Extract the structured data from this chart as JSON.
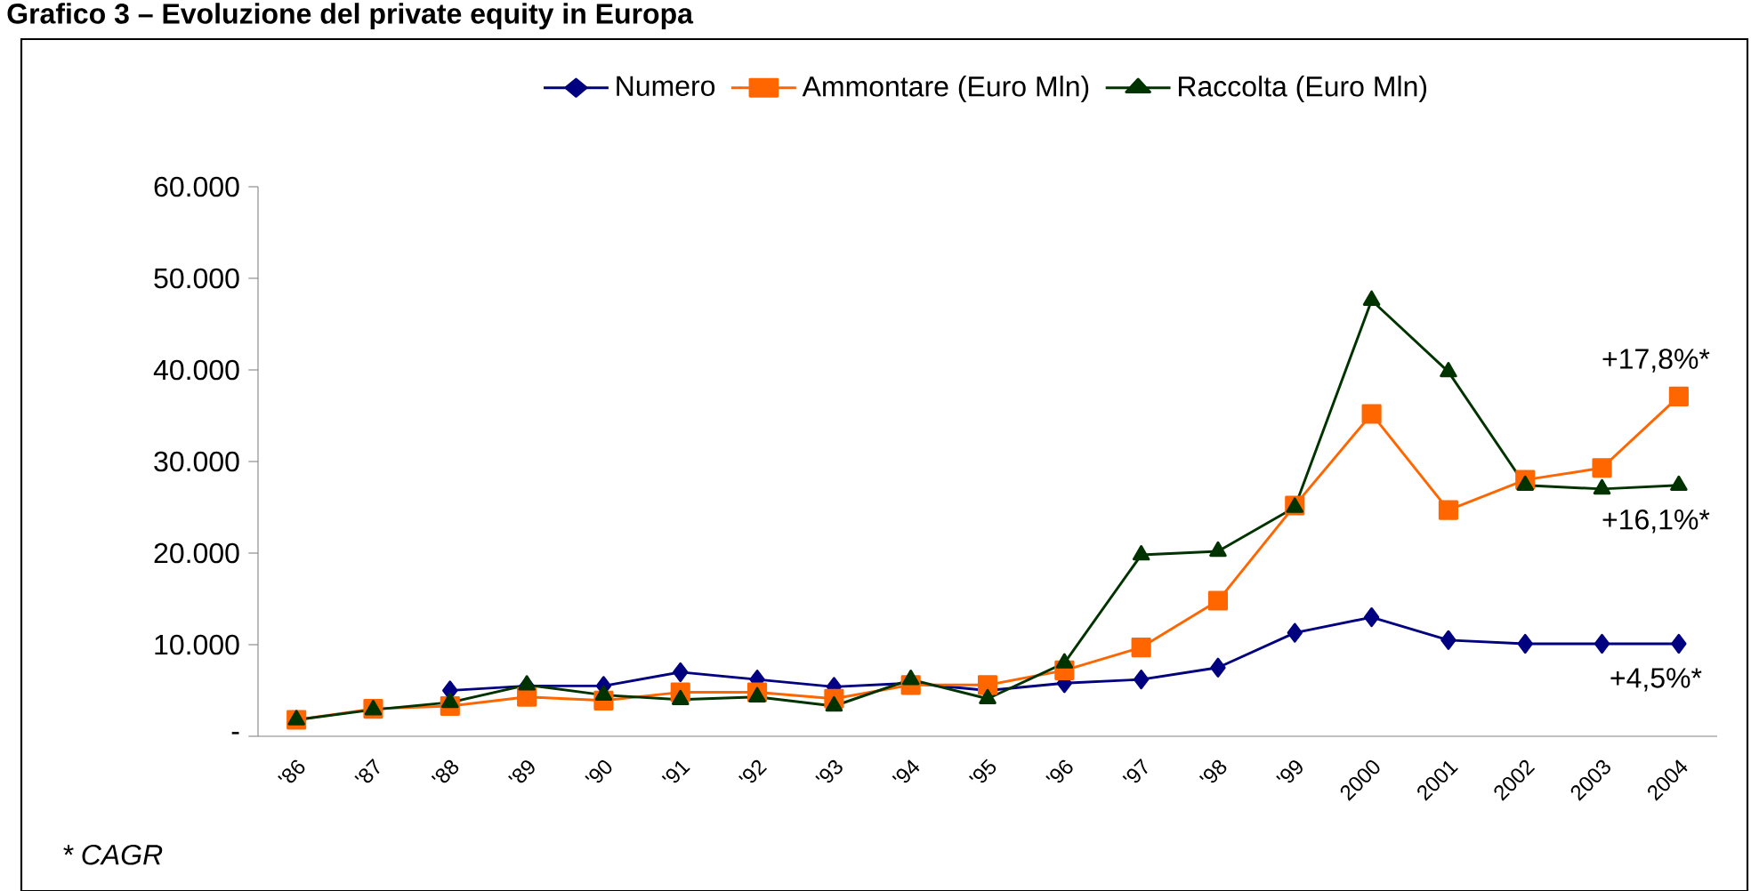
{
  "chart_data": {
    "type": "line",
    "title": "Grafico 3 – Evoluzione del private equity in Europa",
    "categories": [
      "'86",
      "'87",
      "'88",
      "'89",
      "'90",
      "'91",
      "'92",
      "'93",
      "'94",
      "'95",
      "'96",
      "'97",
      "'98",
      "'99",
      "2000",
      "2001",
      "2002",
      "2003",
      "2004"
    ],
    "series": [
      {
        "name": "Numero",
        "color": "#000080",
        "marker": "diamond",
        "values": [
          null,
          null,
          5000,
          5500,
          5500,
          7000,
          6200,
          5400,
          5800,
          5000,
          5800,
          6200,
          7500,
          11300,
          13000,
          10500,
          10100,
          10100,
          10100
        ]
      },
      {
        "name": "Ammontare (Euro Mln)",
        "color": "#ff6600",
        "marker": "square",
        "values": [
          1800,
          3000,
          3300,
          4300,
          3900,
          4800,
          4800,
          4100,
          5600,
          5600,
          7200,
          9700,
          14800,
          25200,
          35200,
          24700,
          28000,
          29300,
          37100
        ]
      },
      {
        "name": "Raccolta (Euro Mln)",
        "color": "#003300",
        "marker": "triangle",
        "values": [
          1800,
          2900,
          3700,
          5600,
          4500,
          4000,
          4300,
          3300,
          6200,
          4100,
          8000,
          19800,
          20200,
          25000,
          47600,
          39800,
          27400,
          27000,
          27400
        ]
      }
    ],
    "ylim": [
      0,
      60000
    ],
    "yticks": [
      {
        "value": 0,
        "label": "-"
      },
      {
        "value": 10000,
        "label": "10.000"
      },
      {
        "value": 20000,
        "label": "20.000"
      },
      {
        "value": 30000,
        "label": "30.000"
      },
      {
        "value": 40000,
        "label": "40.000"
      },
      {
        "value": 50000,
        "label": "50.000"
      },
      {
        "value": 60000,
        "label": "60.000"
      }
    ],
    "grid": false,
    "legend": "top",
    "annotations": [
      {
        "text": "+17,8%*",
        "x": "2004",
        "y": 37100
      },
      {
        "text": "+16,1%*",
        "x": "2004",
        "y": 27400
      },
      {
        "text": "+4,5%*",
        "x": "2004",
        "y": 10100
      },
      "* CAGR"
    ]
  }
}
